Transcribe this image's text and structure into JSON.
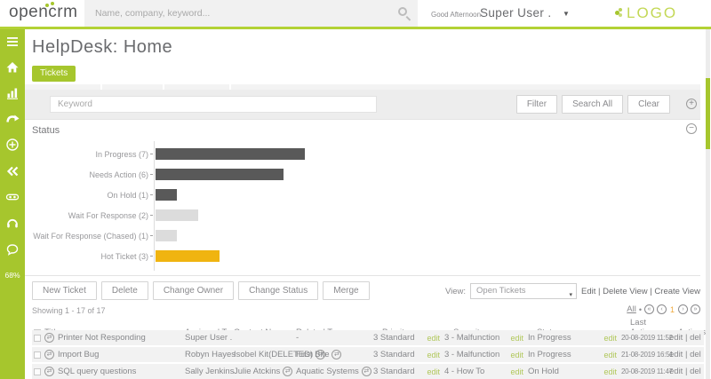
{
  "header": {
    "brand": "opencrm",
    "search_placeholder": "Name, company, keyword...",
    "greeting": "Good Afternoon",
    "user_name": "Super User .",
    "partner_logo": "LOGO"
  },
  "sidebar": {
    "usage_percent": "68%"
  },
  "page": {
    "title": "HelpDesk: Home",
    "module_tab": "Tickets"
  },
  "filter": {
    "keyword_placeholder": "Keyword",
    "buttons": [
      "Filter",
      "Search All",
      "Clear"
    ]
  },
  "status_panel": {
    "title": "Status"
  },
  "chart_data": {
    "type": "bar",
    "orientation": "horizontal",
    "title": "Status",
    "xlabel": "",
    "ylabel": "",
    "categories": [
      "In Progress (7)",
      "Needs Action (6)",
      "On Hold (1)",
      "Wait For Response (2)",
      "Wait For Response (Chased) (1)",
      "Hot Ticket (3)"
    ],
    "values": [
      7,
      6,
      1,
      2,
      1,
      3
    ],
    "colors": [
      "#595959",
      "#595959",
      "#595959",
      "#dcdcdc",
      "#dcdcdc",
      "#f0b410"
    ],
    "xlim": [
      0,
      7.3
    ],
    "grid": false,
    "legend": false
  },
  "toolbar": {
    "buttons": [
      "New Ticket",
      "Delete",
      "Change Owner",
      "Change Status",
      "Merge"
    ],
    "view_label": "View:",
    "view_selected": "Open Tickets",
    "view_links": [
      "Edit",
      "Delete View",
      "Create View"
    ],
    "view_links_separator": "|"
  },
  "list": {
    "showing": "Showing 1 - 17 of 17",
    "pager": {
      "all": "All",
      "sep": "•",
      "first": "«",
      "prev": "‹",
      "page": "1",
      "next": "›",
      "last": "»"
    },
    "columns": [
      "Title",
      "Assigned To",
      "Contact Name",
      "Related To",
      "Priority",
      "Severity",
      "Status",
      "Last Action Date",
      "Actions"
    ],
    "edit_label": "edit",
    "row_actions": {
      "edit": "edit",
      "sep": "|",
      "del": "del"
    },
    "rows": [
      {
        "title": "Printer Not Responding",
        "assigned_to": "Super User .",
        "contact_name": "",
        "related_to": "-",
        "priority": "3 Standard",
        "severity": "3 - Malfunction",
        "status": "In Progress",
        "last_action": "20-08-2019 11:52"
      },
      {
        "title": "Import Bug",
        "assigned_to": "Robyn Hayes",
        "contact_name": "Isobel Kit(DELETED)",
        "related_to": "First Bite",
        "priority": "3 Standard",
        "severity": "3 - Malfunction",
        "status": "In Progress",
        "last_action": "21-08-2019 16:51"
      },
      {
        "title": "SQL query questions",
        "assigned_to": "Sally Jenkins",
        "contact_name": "Julie Atckins",
        "related_to": "Aquatic Systems",
        "priority": "3 Standard",
        "severity": "4 - How To",
        "status": "On Hold",
        "last_action": "20-08-2019 11:47"
      }
    ]
  },
  "colors": {
    "accent_green": "#a6c62d",
    "edit_green": "#b0c75a",
    "bar_dark": "#595959",
    "bar_light": "#dcdcdc",
    "bar_yellow": "#f0b410"
  }
}
